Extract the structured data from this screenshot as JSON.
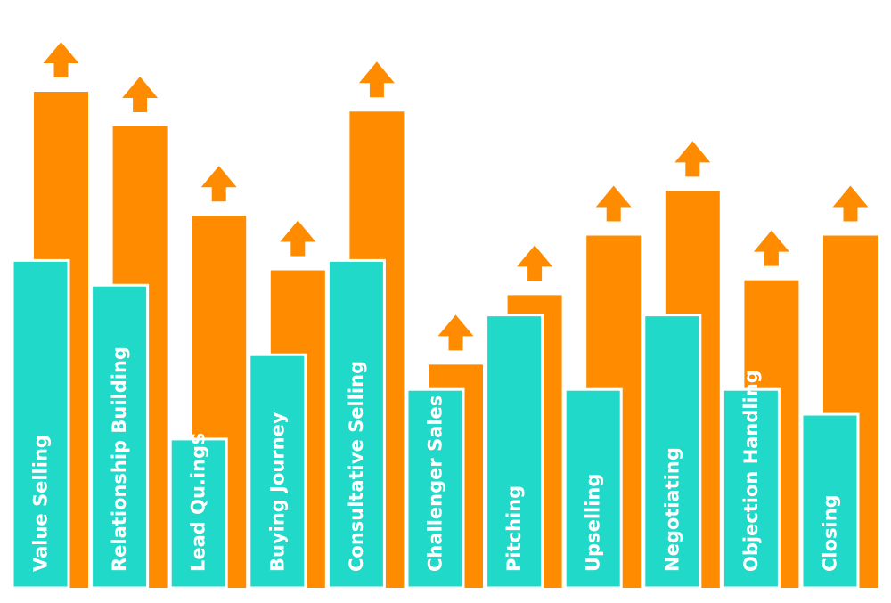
{
  "chart_data": {
    "type": "bar",
    "categories": [
      "Value Selling",
      "Relationship Building",
      "Lead Qu.ing$",
      "Buying Journey",
      "Consultative Selling",
      "Challenger Sales",
      "Pitching",
      "Upselling",
      "Negotiating",
      "Objection Handling",
      "Closing"
    ],
    "series": [
      {
        "values": [
          66,
          61,
          30,
          47,
          66,
          40,
          55,
          40,
          55,
          40,
          35
        ]
      },
      {
        "values": [
          100,
          93,
          75,
          64,
          96,
          45,
          59,
          71,
          80,
          62,
          71
        ]
      }
    ],
    "ylim": [
      0,
      100
    ],
    "title": "",
    "xlabel": "",
    "ylabel": "",
    "grid": false,
    "legend": "none",
    "colors": {
      "current": "#20d9c8",
      "target": "#ff8c00",
      "arrow": "#ff8c00",
      "outline": "#ffffff",
      "label": "#ffffff"
    }
  }
}
